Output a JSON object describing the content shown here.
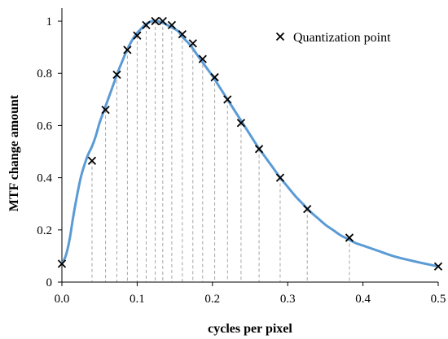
{
  "chart_data": {
    "type": "line",
    "xlabel": "cycles per pixel",
    "ylabel": "MTF change amount",
    "xlim": [
      0,
      0.5
    ],
    "ylim": [
      0,
      1.05
    ],
    "xticks": [
      "0.0",
      "0.1",
      "0.2",
      "0.3",
      "0.4",
      "0.5"
    ],
    "xtick_values": [
      0,
      0.1,
      0.2,
      0.3,
      0.4,
      0.5
    ],
    "yticks": [
      "0",
      "0.2",
      "0.4",
      "0.6",
      "0.8",
      "1"
    ],
    "ytick_values": [
      0,
      0.2,
      0.4,
      0.6,
      0.8,
      1
    ],
    "grid": false,
    "legend_position": "top-right",
    "colors": {
      "curve": "#5b9bd5",
      "marker": "#000000",
      "dropline": "#a6a6a6"
    },
    "curve": {
      "x": [
        0,
        0.005,
        0.01,
        0.015,
        0.02,
        0.025,
        0.03,
        0.035,
        0.04,
        0.045,
        0.05,
        0.055,
        0.06,
        0.065,
        0.07,
        0.075,
        0.08,
        0.085,
        0.09,
        0.095,
        0.1,
        0.105,
        0.11,
        0.115,
        0.12,
        0.125,
        0.13,
        0.135,
        0.14,
        0.145,
        0.15,
        0.155,
        0.16,
        0.17,
        0.18,
        0.19,
        0.2,
        0.21,
        0.22,
        0.23,
        0.24,
        0.25,
        0.26,
        0.27,
        0.28,
        0.29,
        0.3,
        0.31,
        0.32,
        0.33,
        0.34,
        0.35,
        0.36,
        0.37,
        0.38,
        0.39,
        0.4,
        0.42,
        0.44,
        0.46,
        0.48,
        0.5
      ],
      "y": [
        0.07,
        0.1,
        0.16,
        0.25,
        0.33,
        0.4,
        0.45,
        0.49,
        0.52,
        0.56,
        0.61,
        0.65,
        0.69,
        0.73,
        0.77,
        0.81,
        0.845,
        0.88,
        0.91,
        0.935,
        0.955,
        0.97,
        0.985,
        0.995,
        1.0,
        1.0,
        0.998,
        0.993,
        0.985,
        0.978,
        0.97,
        0.96,
        0.94,
        0.91,
        0.87,
        0.83,
        0.79,
        0.745,
        0.7,
        0.655,
        0.61,
        0.565,
        0.52,
        0.48,
        0.44,
        0.4,
        0.365,
        0.33,
        0.3,
        0.27,
        0.245,
        0.22,
        0.2,
        0.18,
        0.165,
        0.15,
        0.14,
        0.12,
        0.1,
        0.085,
        0.072,
        0.06
      ]
    },
    "series": [
      {
        "name": "Quantization point",
        "x": [
          0.0,
          0.04,
          0.058,
          0.073,
          0.087,
          0.1,
          0.112,
          0.124,
          0.134,
          0.146,
          0.16,
          0.174,
          0.187,
          0.203,
          0.22,
          0.238,
          0.262,
          0.29,
          0.326,
          0.382,
          0.5
        ],
        "y": [
          0.07,
          0.465,
          0.66,
          0.795,
          0.89,
          0.945,
          0.985,
          1.0,
          1.0,
          0.985,
          0.95,
          0.915,
          0.855,
          0.785,
          0.7,
          0.61,
          0.51,
          0.4,
          0.28,
          0.17,
          0.06
        ]
      }
    ]
  }
}
